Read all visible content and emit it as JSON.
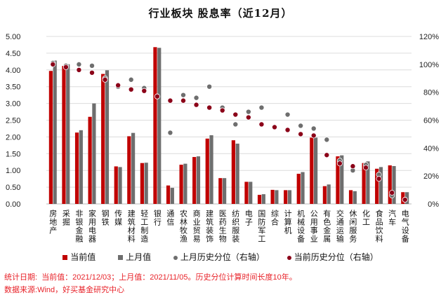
{
  "chart_data": {
    "type": "bar",
    "title": "行业板块  股息率（近12月）",
    "categories": [
      "房地产",
      "采掘",
      "非银金融",
      "家用电器",
      "钢铁",
      "传媒",
      "建筑材料",
      "轻工制造",
      "银行",
      "通信",
      "农林牧渔",
      "商业贸易",
      "建筑装饰",
      "医药生物",
      "纺织服装",
      "电子",
      "国防军工",
      "综合",
      "计算机",
      "机械设备",
      "公用事业",
      "有色金属",
      "交通运输",
      "休闲服务",
      "化工",
      "食品饮料",
      "汽车",
      "电气设备"
    ],
    "series": [
      {
        "name": "当前值",
        "axis": "left",
        "kind": "bar",
        "color": "#c00000",
        "values": [
          3.97,
          4.12,
          2.13,
          2.6,
          3.88,
          1.12,
          2.02,
          1.22,
          4.68,
          0.55,
          1.17,
          1.4,
          1.95,
          0.77,
          1.9,
          0.66,
          0.27,
          0.42,
          0.41,
          0.9,
          1.98,
          0.53,
          1.42,
          0.41,
          1.22,
          1.05,
          1.15,
          0.35
        ]
      },
      {
        "name": "上月值",
        "axis": "left",
        "kind": "bar",
        "color": "#6e6e6e",
        "values": [
          4.28,
          4.17,
          2.2,
          3.0,
          3.99,
          1.1,
          2.12,
          1.23,
          4.66,
          0.48,
          1.2,
          1.42,
          2.05,
          0.77,
          1.8,
          0.66,
          0.29,
          0.41,
          0.41,
          0.95,
          1.98,
          0.58,
          1.45,
          0.38,
          1.27,
          1.1,
          1.13,
          0.35
        ]
      },
      {
        "name": "上月历史分位（右轴）",
        "axis": "right",
        "kind": "dot",
        "color": "#6e6e6e",
        "values": [
          101,
          99,
          100,
          99,
          90,
          84,
          89,
          83,
          77,
          51,
          78,
          76,
          84,
          69,
          57,
          66,
          69,
          55,
          64,
          56,
          54,
          46,
          31,
          24,
          28,
          21,
          6,
          3
        ]
      },
      {
        "name": "当前历史分位（右轴）",
        "axis": "right",
        "kind": "dot",
        "color": "#8b0018",
        "values": [
          100,
          98,
          96,
          94,
          89,
          85,
          82,
          81,
          77,
          74,
          74,
          71,
          69,
          67,
          64,
          62,
          57,
          55,
          53,
          50,
          49,
          35,
          29,
          27,
          26,
          18,
          8,
          3
        ]
      }
    ],
    "left_axis": {
      "min": 0,
      "max": 5,
      "step": 0.5,
      "tick_labels": [
        "0.00",
        "0.50",
        "1.00",
        "1.50",
        "2.00",
        "2.50",
        "3.00",
        "3.50",
        "4.00",
        "4.50",
        "5.00"
      ]
    },
    "right_axis": {
      "min": 0,
      "max": 120,
      "step": 20,
      "tick_labels": [
        "0%",
        "20%",
        "40%",
        "60%",
        "80%",
        "100%",
        "120%"
      ]
    },
    "legend_position": "bottom",
    "grid": true
  },
  "footer": {
    "line1_label": "统计日期:",
    "line1_text": "当前值：2021/12/03；上月值：2021/11/05。历史分位计算时间长度10年。",
    "line2_label": "数据来源:",
    "line2_text": "Wind，好买基金研究中心"
  }
}
